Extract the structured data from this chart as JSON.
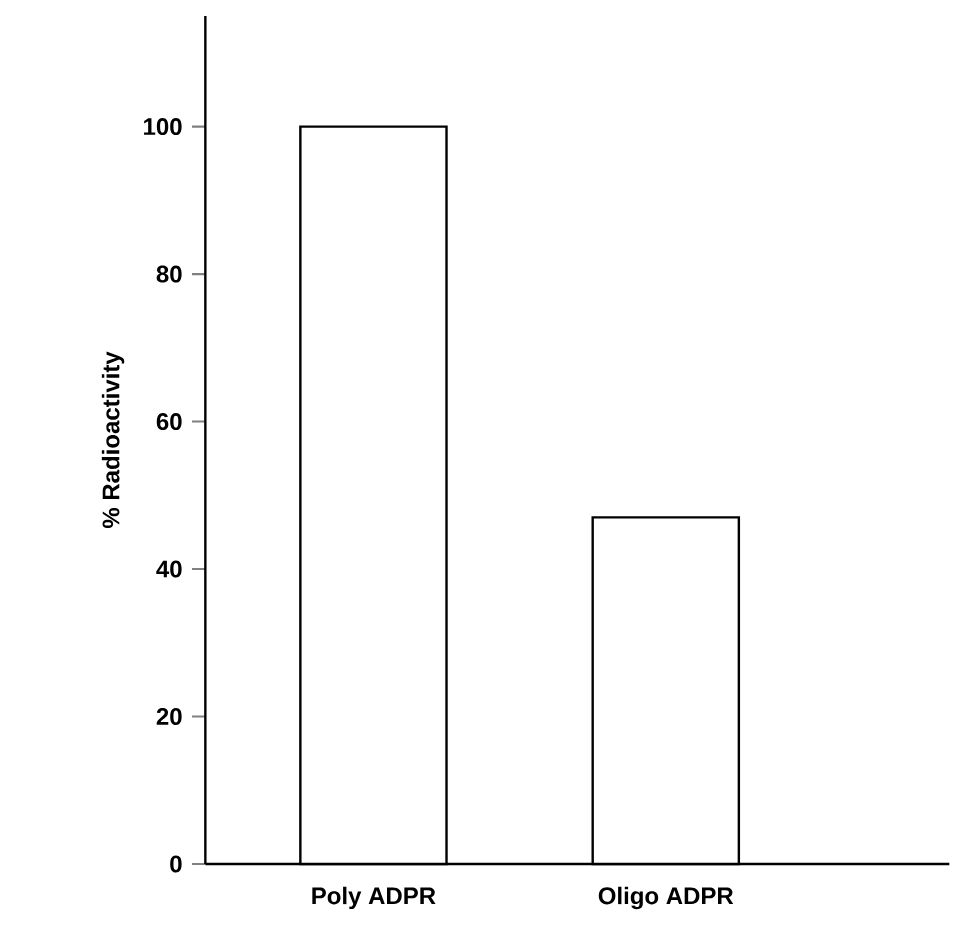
{
  "chart_data": {
    "type": "bar",
    "ylabel": "% Radioactivity",
    "categories": [
      "Poly ADPR",
      "Oligo ADPR"
    ],
    "values": [
      100,
      47
    ],
    "color": "#ffffff",
    "ylim": [
      0,
      115
    ],
    "yticks": [
      0,
      20,
      40,
      60,
      80,
      100
    ],
    "grid": false
  }
}
